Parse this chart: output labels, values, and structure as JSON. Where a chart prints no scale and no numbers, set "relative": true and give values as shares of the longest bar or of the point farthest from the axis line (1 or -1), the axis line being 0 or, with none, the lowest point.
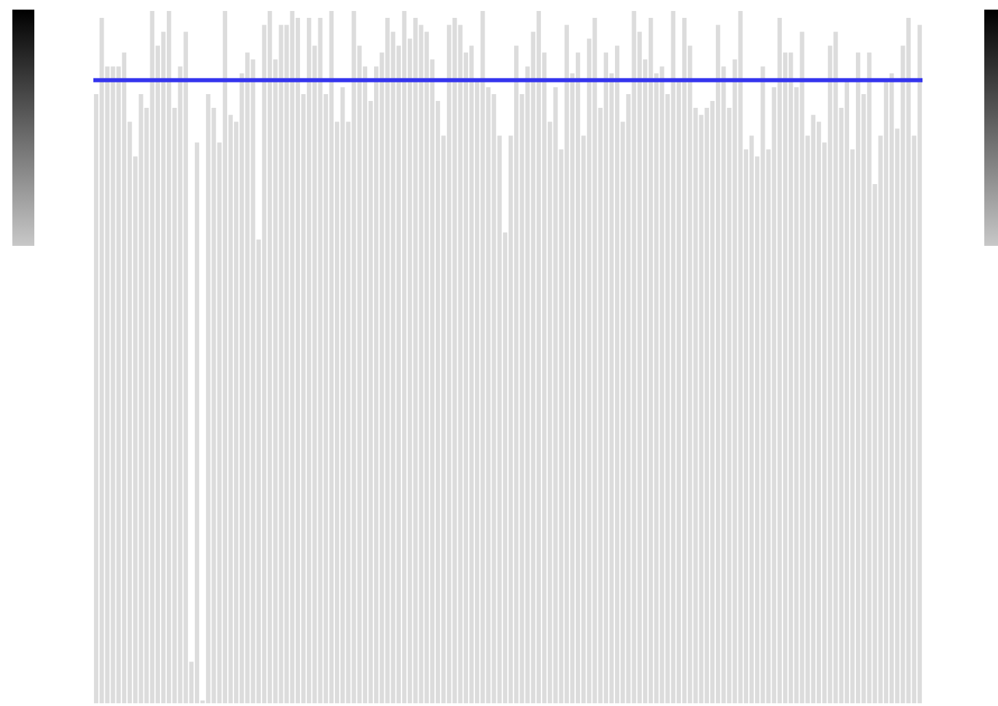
{
  "chart_data": {
    "type": "bar",
    "relative": true,
    "color": "#dcdcdc",
    "categories": [
      null,
      null,
      null,
      null,
      null,
      null,
      null,
      null,
      null,
      null,
      null,
      null,
      null,
      null,
      null,
      null,
      null,
      null,
      null,
      null,
      null,
      null,
      null,
      null,
      null,
      null,
      null,
      null,
      null,
      null,
      null,
      null,
      null,
      null,
      null,
      null,
      null,
      null,
      null,
      null,
      null,
      null,
      null,
      null,
      null,
      null,
      null,
      null,
      null,
      null,
      null,
      null,
      null,
      null,
      null,
      null,
      null,
      null,
      null,
      null,
      null,
      null,
      null,
      null,
      null,
      null,
      null,
      null,
      null,
      null,
      null,
      null,
      null,
      null,
      null,
      null,
      null,
      null,
      null,
      null,
      null,
      null,
      null,
      null,
      null,
      null,
      null,
      null,
      null,
      null,
      null,
      null,
      null,
      null,
      null,
      null,
      null,
      null,
      null,
      null,
      null,
      null,
      null,
      null,
      null,
      null,
      null,
      null,
      null,
      null,
      null,
      null,
      null,
      null,
      null,
      null,
      null,
      null,
      null,
      null,
      null,
      null,
      null,
      null,
      null,
      null,
      null,
      null,
      null,
      null,
      null,
      null,
      null,
      null,
      null,
      null,
      null,
      null,
      null,
      null,
      null,
      null,
      null,
      null,
      null,
      null,
      null,
      null
    ],
    "values": [
      0.88,
      0.99,
      0.92,
      0.92,
      0.92,
      0.94,
      0.84,
      0.79,
      0.88,
      0.86,
      1,
      0.95,
      0.97,
      1,
      0.86,
      0.92,
      0.97,
      0.06,
      0.81,
      0.004,
      0.88,
      0.86,
      0.81,
      1,
      0.85,
      0.84,
      0.91,
      0.94,
      0.93,
      0.67,
      0.98,
      1,
      0.93,
      0.98,
      0.98,
      1,
      0.99,
      0.88,
      0.99,
      0.95,
      0.99,
      0.88,
      1,
      0.84,
      0.89,
      0.84,
      1,
      0.95,
      0.92,
      0.87,
      0.92,
      0.94,
      0.99,
      0.97,
      0.95,
      1,
      0.96,
      0.99,
      0.98,
      0.97,
      0.93,
      0.87,
      0.82,
      0.98,
      0.99,
      0.98,
      0.94,
      0.95,
      0.9,
      1,
      0.89,
      0.88,
      0.82,
      0.68,
      0.82,
      0.95,
      0.88,
      0.92,
      0.97,
      1,
      0.94,
      0.84,
      0.89,
      0.8,
      0.98,
      0.91,
      0.94,
      0.82,
      0.96,
      0.99,
      0.86,
      0.94,
      0.91,
      0.95,
      0.84,
      0.88,
      1,
      0.97,
      0.93,
      0.99,
      0.91,
      0.92,
      0.88,
      1,
      0.9,
      0.99,
      0.95,
      0.86,
      0.85,
      0.86,
      0.87,
      0.98,
      0.92,
      0.86,
      0.93,
      1,
      0.8,
      0.82,
      0.79,
      0.92,
      0.8,
      0.89,
      0.99,
      0.94,
      0.94,
      0.89,
      0.97,
      0.82,
      0.85,
      0.84,
      0.81,
      0.95,
      0.97,
      0.86,
      0.9,
      0.8,
      0.94,
      0.88,
      0.94,
      0.75,
      0.82,
      0.9,
      0.91,
      0.83,
      0.95,
      0.99,
      0.82,
      0.98
    ],
    "ref_lines": [
      {
        "axis": "y",
        "value": 0.9,
        "color": "#3535ee"
      }
    ]
  }
}
